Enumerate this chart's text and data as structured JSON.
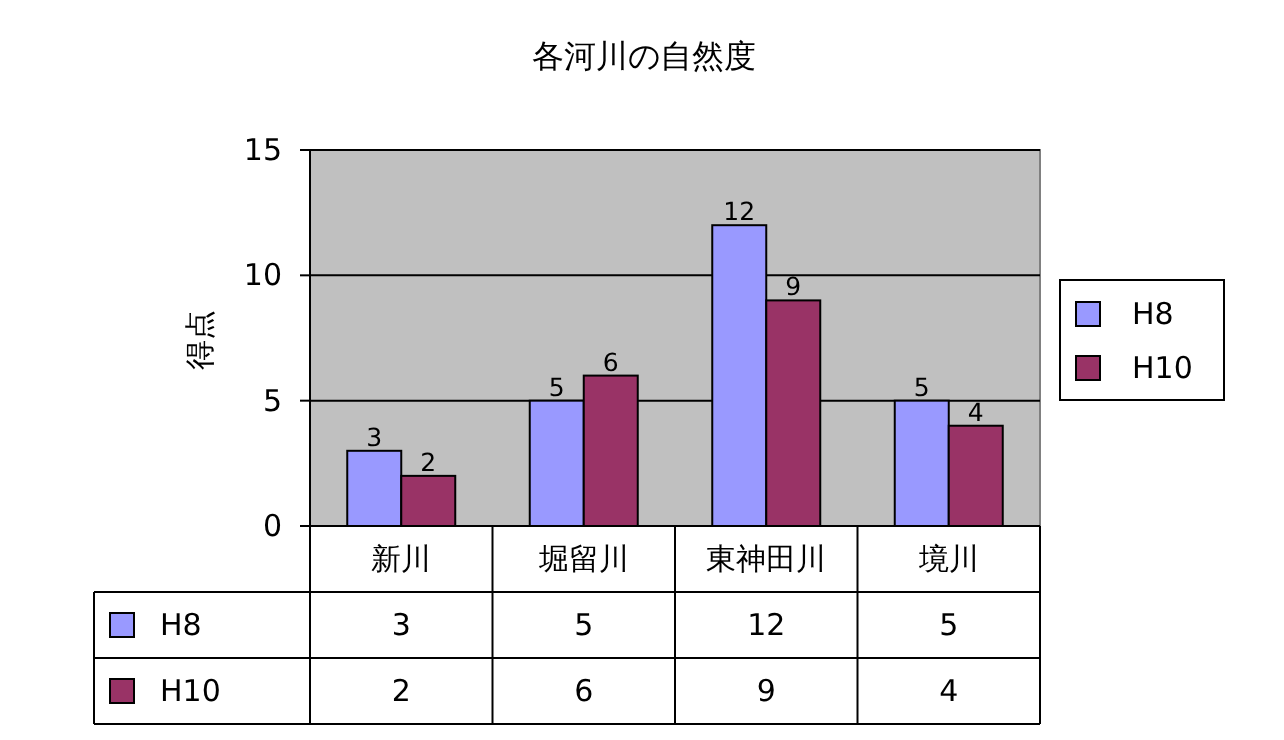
{
  "chart_data": {
    "type": "bar",
    "title": "各河川の自然度",
    "ylabel": "得点",
    "categories": [
      "新川",
      "堀留川",
      "東神田川",
      "境川"
    ],
    "series": [
      {
        "name": "H8",
        "color": "#9999ff",
        "values": [
          3,
          5,
          12,
          5
        ]
      },
      {
        "name": "H10",
        "color": "#993366",
        "values": [
          2,
          6,
          9,
          4
        ]
      }
    ],
    "annotations": [
      {
        "text": "3",
        "x": "新川",
        "y": 3
      },
      {
        "text": "2",
        "x": "新川",
        "y": 2
      },
      {
        "text": "5",
        "x": "堀留川",
        "y": 5
      },
      {
        "text": "6",
        "x": "堀留川",
        "y": 6
      },
      {
        "text": "12",
        "x": "東神田川",
        "y": 12
      },
      {
        "text": "9",
        "x": "東神田川",
        "y": 9
      },
      {
        "text": "5",
        "x": "境川",
        "y": 5
      },
      {
        "text": "4",
        "x": "境川",
        "y": 4
      }
    ],
    "ylim": [
      0,
      15
    ],
    "yticks": [
      0,
      5,
      10,
      15
    ],
    "grid": "y",
    "legend": "right",
    "data_labels": true
  }
}
